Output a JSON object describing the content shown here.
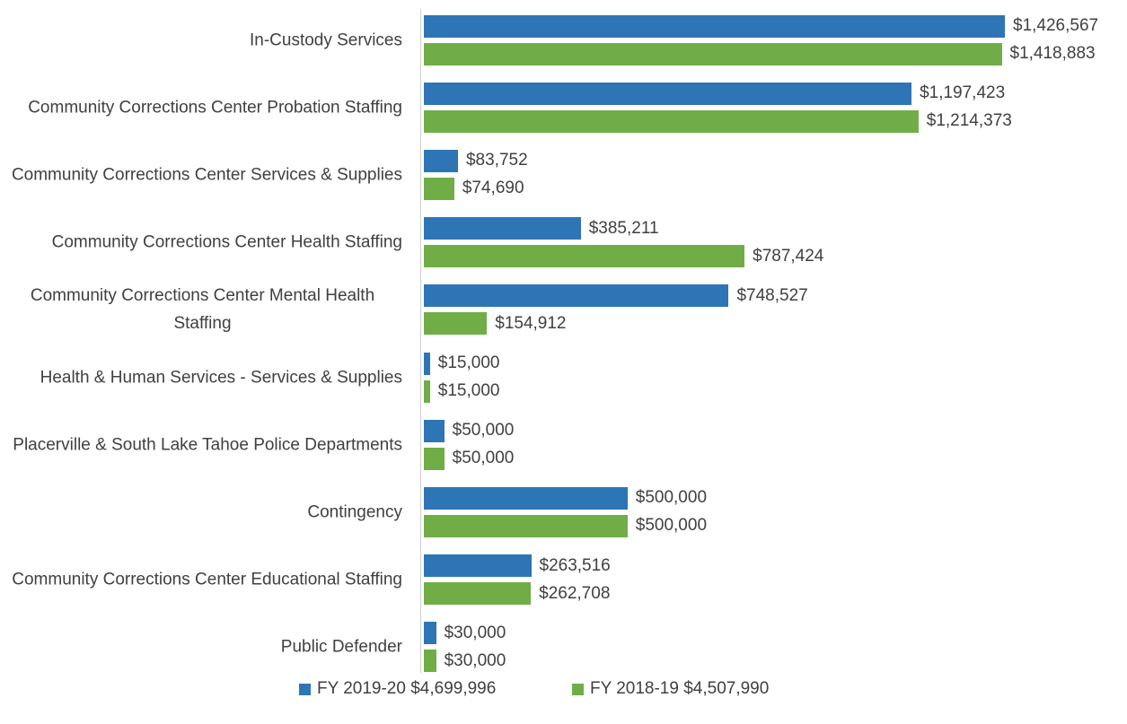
{
  "chart_data": {
    "type": "bar",
    "orientation": "horizontal",
    "categories": [
      "In-Custody Services",
      "Community Corrections Center Probation Staffing",
      "Community Corrections Center Services & Supplies",
      "Community Corrections Center Health Staffing",
      "Community Corrections Center Mental Health Staffing",
      "Health & Human Services - Services & Supplies",
      "Placerville & South Lake Tahoe Police Departments",
      "Contingency",
      "Community Corrections Center Educational Staffing",
      "Public Defender"
    ],
    "series": [
      {
        "name": "FY 2019-20 $4,699,996",
        "color": "#2e75b6",
        "values": [
          1426567,
          1197423,
          83752,
          385211,
          748527,
          15000,
          50000,
          500000,
          263516,
          30000
        ],
        "value_labels": [
          "$1,426,567",
          "$1,197,423",
          "$83,752",
          "$385,211",
          "$748,527",
          "$15,000",
          "$50,000",
          "$500,000",
          "$263,516",
          "$30,000"
        ]
      },
      {
        "name": "FY 2018-19 $4,507,990",
        "color": "#70ad47",
        "values": [
          1418883,
          1214373,
          74690,
          787424,
          154912,
          15000,
          50000,
          500000,
          262708,
          30000
        ],
        "value_labels": [
          "$1,418,883",
          "$1,214,373",
          "$74,690",
          "$787,424",
          "$154,912",
          "$15,000",
          "$50,000",
          "$500,000",
          "$262,708",
          "$30,000"
        ]
      }
    ],
    "legend": "bottom"
  }
}
